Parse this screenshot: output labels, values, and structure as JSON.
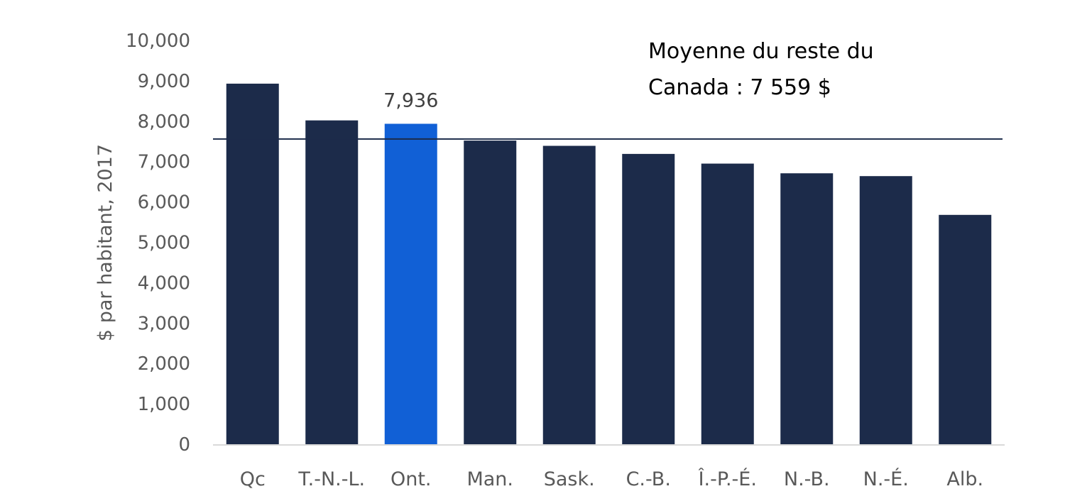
{
  "chart_data": {
    "type": "bar",
    "categories": [
      "Qc",
      "T.-N.-L.",
      "Ont.",
      "Man.",
      "Sask.",
      "C.-B.",
      "Î.-P.-É.",
      "N.-B.",
      "N.-É.",
      "Alb."
    ],
    "values": [
      8930,
      8020,
      7936,
      7520,
      7390,
      7190,
      6950,
      6710,
      6640,
      5680
    ],
    "highlight": "Ont.",
    "data_labels": [
      {
        "category": "Ont.",
        "text": "7,936"
      }
    ],
    "ylabel": "$ par habitant, 2017",
    "ylim": [
      0,
      10000
    ],
    "yticks": [
      {
        "value": 0,
        "label": "0"
      },
      {
        "value": 1000,
        "label": "1,000"
      },
      {
        "value": 2000,
        "label": "2,000"
      },
      {
        "value": 3000,
        "label": "3,000"
      },
      {
        "value": 4000,
        "label": "4,000"
      },
      {
        "value": 5000,
        "label": "5,000"
      },
      {
        "value": 6000,
        "label": "6,000"
      },
      {
        "value": 7000,
        "label": "7,000"
      },
      {
        "value": 8000,
        "label": "8,000"
      },
      {
        "value": 9000,
        "label": "9,000"
      },
      {
        "value": 10000,
        "label": "10,000"
      }
    ],
    "reference_line": {
      "value": 7559,
      "label_lines": [
        "Moyenne du reste du",
        "Canada : 7 559 $"
      ]
    },
    "grid": false,
    "colors": {
      "bar": "#1c2b4a",
      "highlight": "#1160d6",
      "axis": "#d9d9d9",
      "reference": "#1c2b4a"
    }
  }
}
